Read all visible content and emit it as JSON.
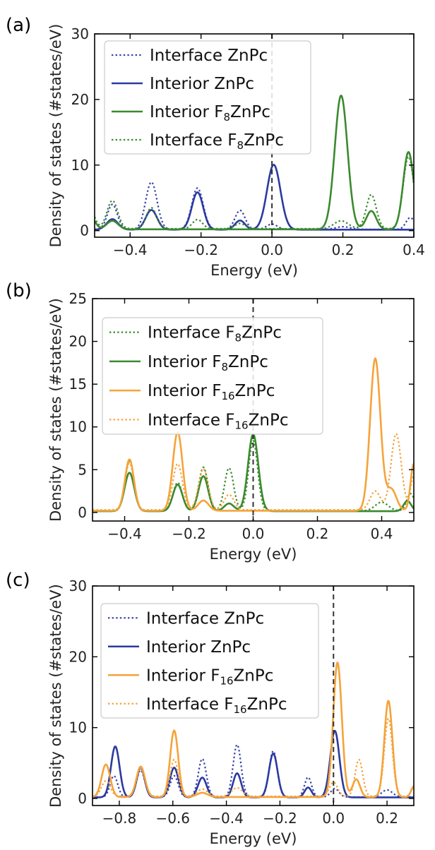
{
  "chart_data": [
    {
      "type": "line",
      "panel_label": "(a)",
      "xlabel": "Energy (eV)",
      "ylabel": "Density of states (#states/eV)",
      "xlim": [
        -0.5,
        0.4
      ],
      "ylim": [
        -1,
        30
      ],
      "xticks": [
        -0.4,
        -0.2,
        0.0,
        0.2,
        0.4
      ],
      "xtick_labels": [
        "−0.4",
        "−0.2",
        "0.0",
        "0.2",
        "0.4"
      ],
      "yticks": [
        0,
        10,
        20,
        30
      ],
      "ytick_labels": [
        "0",
        "10",
        "20",
        "30"
      ],
      "fermi_line_x": 0.0,
      "legend": [
        {
          "pre": "Interface ZnPc",
          "sub": "",
          "post": "",
          "color": "#3a44a8",
          "style": "dotted"
        },
        {
          "pre": "Interior ZnPc",
          "sub": "",
          "post": "",
          "color": "#2b3aa0",
          "style": "solid"
        },
        {
          "pre": "Interior F",
          "sub": "8",
          "post": "ZnPc",
          "color": "#3a8a2e",
          "style": "solid"
        },
        {
          "pre": "Interface F",
          "sub": "8",
          "post": "ZnPc",
          "color": "#3a8a2e",
          "style": "dotted"
        }
      ],
      "series": [
        {
          "name": "Interface ZnPc",
          "color": "#3a44a8",
          "style": "dotted",
          "baseline": 0.2,
          "peaks": [
            [
              -0.45,
              3.8,
              0.014
            ],
            [
              -0.34,
              7.2,
              0.016
            ],
            [
              -0.21,
              6.3,
              0.016
            ],
            [
              -0.09,
              2.9,
              0.014
            ],
            [
              0.0,
              0.8,
              0.015
            ],
            [
              0.2,
              0.4,
              0.02
            ],
            [
              0.39,
              1.8,
              0.012
            ]
          ]
        },
        {
          "name": "Interior ZnPc",
          "color": "#2b3aa0",
          "style": "solid",
          "baseline": 0.15,
          "peaks": [
            [
              -0.45,
              1.6,
              0.016
            ],
            [
              -0.34,
              3.0,
              0.016
            ],
            [
              -0.21,
              5.7,
              0.016
            ],
            [
              -0.09,
              1.4,
              0.014
            ],
            [
              0.005,
              9.9,
              0.019
            ]
          ]
        },
        {
          "name": "Interior F8ZnPc",
          "color": "#3a8a2e",
          "style": "solid",
          "baseline": 0.2,
          "peaks": [
            [
              -0.51,
              1.8,
              0.012
            ],
            [
              -0.45,
              1.3,
              0.016
            ],
            [
              0.195,
              20.4,
              0.018
            ],
            [
              0.28,
              2.8,
              0.014
            ],
            [
              0.385,
              11.8,
              0.015
            ]
          ]
        },
        {
          "name": "Interface F8ZnPc",
          "color": "#3a8a2e",
          "style": "dotted",
          "baseline": 0.3,
          "peaks": [
            [
              -0.51,
              2.5,
              0.012
            ],
            [
              -0.45,
              4.3,
              0.015
            ],
            [
              -0.34,
              3.2,
              0.014
            ],
            [
              -0.21,
              1.4,
              0.014
            ],
            [
              -0.09,
              0.8,
              0.014
            ],
            [
              0.195,
              1.2,
              0.02
            ],
            [
              0.28,
              5.2,
              0.014
            ],
            [
              0.385,
              11.0,
              0.015
            ]
          ]
        }
      ]
    },
    {
      "type": "line",
      "panel_label": "(b)",
      "xlabel": "Energy (eV)",
      "ylabel": "Density of states (#states/eV)",
      "xlim": [
        -0.5,
        0.5
      ],
      "ylim": [
        -1,
        25
      ],
      "xticks": [
        -0.4,
        -0.2,
        0.0,
        0.2,
        0.4
      ],
      "xtick_labels": [
        "−0.4",
        "−0.2",
        "0.0",
        "0.2",
        "0.4"
      ],
      "yticks": [
        0,
        5,
        10,
        15,
        20,
        25
      ],
      "ytick_labels": [
        "0",
        "5",
        "10",
        "15",
        "20",
        "25"
      ],
      "fermi_line_x": 0.0,
      "legend": [
        {
          "pre": "Interface F",
          "sub": "8",
          "post": "ZnPc",
          "color": "#3a8a2e",
          "style": "dotted"
        },
        {
          "pre": "Interior F",
          "sub": "8",
          "post": "ZnPc",
          "color": "#3a8a2e",
          "style": "solid"
        },
        {
          "pre": "Interior F",
          "sub": "16",
          "post": "ZnPc",
          "color": "#f5a33a",
          "style": "solid"
        },
        {
          "pre": "Interface F",
          "sub": "16",
          "post": "ZnPc",
          "color": "#f5a33a",
          "style": "dotted"
        }
      ],
      "series": [
        {
          "name": "Interface F8ZnPc",
          "color": "#3a8a2e",
          "style": "dotted",
          "baseline": 0.2,
          "peaks": [
            [
              -0.385,
              5.8,
              0.014
            ],
            [
              -0.235,
              3.3,
              0.014
            ],
            [
              -0.155,
              5.1,
              0.014
            ],
            [
              -0.075,
              5.0,
              0.014
            ],
            [
              0.0,
              8.2,
              0.014
            ],
            [
              0.4,
              1.0,
              0.02
            ],
            [
              0.49,
              2.0,
              0.012
            ]
          ]
        },
        {
          "name": "Interior F8ZnPc",
          "color": "#3a8a2e",
          "style": "solid",
          "baseline": 0.15,
          "peaks": [
            [
              -0.385,
              4.5,
              0.015
            ],
            [
              -0.235,
              3.1,
              0.015
            ],
            [
              -0.155,
              4.1,
              0.015
            ],
            [
              -0.075,
              0.9,
              0.015
            ],
            [
              0.0,
              9.0,
              0.016
            ],
            [
              0.48,
              1.2,
              0.012
            ]
          ]
        },
        {
          "name": "Interior F16ZnPc",
          "color": "#f5a33a",
          "style": "solid",
          "baseline": 0.2,
          "peaks": [
            [
              -0.385,
              6.0,
              0.014
            ],
            [
              -0.235,
              9.2,
              0.015
            ],
            [
              -0.155,
              1.2,
              0.016
            ],
            [
              0.38,
              17.8,
              0.016
            ],
            [
              0.43,
              2.5,
              0.016
            ],
            [
              0.5,
              5.5,
              0.01
            ]
          ]
        },
        {
          "name": "Interface F16ZnPc",
          "color": "#f5a33a",
          "style": "dotted",
          "baseline": 0.3,
          "peaks": [
            [
              -0.385,
              5.5,
              0.014
            ],
            [
              -0.235,
              5.4,
              0.015
            ],
            [
              -0.155,
              4.8,
              0.015
            ],
            [
              -0.075,
              1.8,
              0.015
            ],
            [
              0.38,
              2.2,
              0.016
            ],
            [
              0.445,
              8.9,
              0.016
            ],
            [
              0.5,
              4.0,
              0.01
            ]
          ]
        }
      ]
    },
    {
      "type": "line",
      "panel_label": "(c)",
      "xlabel": "Energy (eV)",
      "ylabel": "Density of states (#states/eV)",
      "xlim": [
        -0.9,
        0.3
      ],
      "ylim": [
        -1,
        30
      ],
      "xticks": [
        -0.8,
        -0.6,
        -0.4,
        -0.2,
        0.0,
        0.2
      ],
      "xtick_labels": [
        "−0.8",
        "−0.6",
        "−0.4",
        "−0.2",
        "0.0",
        "0.2"
      ],
      "yticks": [
        0,
        10,
        20,
        30
      ],
      "ytick_labels": [
        "0",
        "10",
        "20",
        "30"
      ],
      "fermi_line_x": 0.0,
      "legend": [
        {
          "pre": "Interface ZnPc",
          "sub": "",
          "post": "",
          "color": "#3a44a8",
          "style": "dotted"
        },
        {
          "pre": "Interior ZnPc",
          "sub": "",
          "post": "",
          "color": "#2b3aa0",
          "style": "solid"
        },
        {
          "pre": "Interior F",
          "sub": "16",
          "post": "ZnPc",
          "color": "#f5a33a",
          "style": "solid"
        },
        {
          "pre": "Interface F",
          "sub": "16",
          "post": "ZnPc",
          "color": "#f5a33a",
          "style": "dotted"
        }
      ],
      "series": [
        {
          "name": "Interface ZnPc",
          "color": "#3a44a8",
          "style": "dotted",
          "baseline": 0.2,
          "peaks": [
            [
              -0.82,
              3.0,
              0.014
            ],
            [
              -0.72,
              3.8,
              0.015
            ],
            [
              -0.595,
              3.0,
              0.015
            ],
            [
              -0.49,
              5.4,
              0.015
            ],
            [
              -0.36,
              7.4,
              0.015
            ],
            [
              -0.225,
              6.5,
              0.015
            ],
            [
              -0.095,
              2.8,
              0.013
            ],
            [
              0.005,
              1.2,
              0.015
            ],
            [
              0.2,
              1.0,
              0.02
            ]
          ]
        },
        {
          "name": "Interior ZnPc",
          "color": "#2b3aa0",
          "style": "solid",
          "baseline": 0.15,
          "peaks": [
            [
              -0.815,
              7.2,
              0.016
            ],
            [
              -0.72,
              4.2,
              0.015
            ],
            [
              -0.595,
              4.2,
              0.016
            ],
            [
              -0.49,
              2.8,
              0.016
            ],
            [
              -0.36,
              3.4,
              0.015
            ],
            [
              -0.225,
              6.2,
              0.016
            ],
            [
              -0.095,
              1.4,
              0.013
            ],
            [
              0.005,
              9.4,
              0.017
            ]
          ]
        },
        {
          "name": "Interior F16ZnPc",
          "color": "#f5a33a",
          "style": "solid",
          "baseline": 0.2,
          "peaks": [
            [
              -0.85,
              4.6,
              0.016
            ],
            [
              -0.72,
              4.3,
              0.016
            ],
            [
              -0.595,
              9.4,
              0.015
            ],
            [
              -0.49,
              0.6,
              0.02
            ],
            [
              0.015,
              19.0,
              0.016
            ],
            [
              0.085,
              2.5,
              0.014
            ],
            [
              0.205,
              13.6,
              0.015
            ],
            [
              0.3,
              1.5,
              0.01
            ]
          ]
        },
        {
          "name": "Interface F16ZnPc",
          "color": "#f5a33a",
          "style": "dotted",
          "baseline": 0.3,
          "peaks": [
            [
              -0.85,
              2.2,
              0.016
            ],
            [
              -0.72,
              4.0,
              0.016
            ],
            [
              -0.595,
              5.2,
              0.015
            ],
            [
              -0.49,
              1.0,
              0.02
            ],
            [
              -0.36,
              1.2,
              0.02
            ],
            [
              0.0,
              2.0,
              0.015
            ],
            [
              0.095,
              5.2,
              0.014
            ],
            [
              0.205,
              11.0,
              0.015
            ],
            [
              0.3,
              1.2,
              0.01
            ]
          ]
        }
      ]
    }
  ]
}
